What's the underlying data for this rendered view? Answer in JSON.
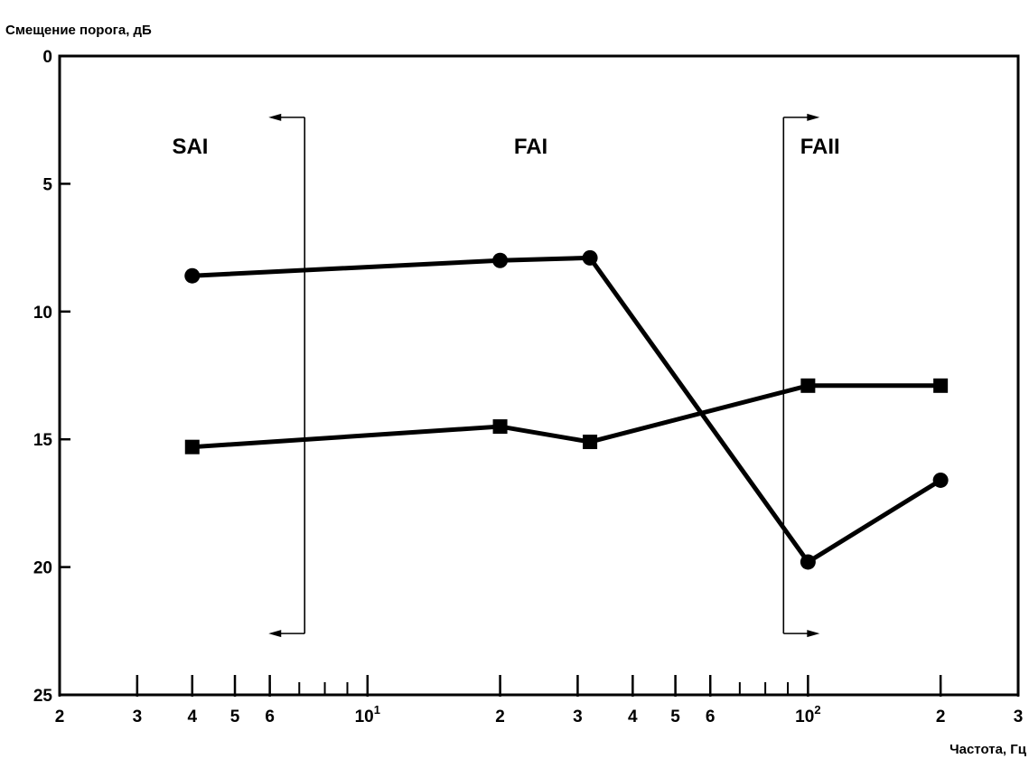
{
  "chart_data": {
    "type": "line",
    "title": "",
    "ylabel": "Смещение порога, дБ",
    "xlabel": "Частота, Гц",
    "x_scale": "log",
    "xlim": [
      2,
      300
    ],
    "ylim": [
      0,
      25
    ],
    "y_inverted": true,
    "grid": false,
    "legend": "none",
    "y_ticks": [
      0,
      5,
      10,
      15,
      20,
      25
    ],
    "x_major_ticks": [
      {
        "value": 2,
        "label": "2"
      },
      {
        "value": 3,
        "label": "3"
      },
      {
        "value": 4,
        "label": "4"
      },
      {
        "value": 5,
        "label": "5"
      },
      {
        "value": 6,
        "label": "6"
      },
      {
        "value": 10,
        "label": "10",
        "sup": "1"
      },
      {
        "value": 20,
        "label": "2"
      },
      {
        "value": 30,
        "label": "3"
      },
      {
        "value": 40,
        "label": "4"
      },
      {
        "value": 50,
        "label": "5"
      },
      {
        "value": 60,
        "label": "6"
      },
      {
        "value": 100,
        "label": "10",
        "sup": "2"
      },
      {
        "value": 200,
        "label": "2"
      },
      {
        "value": 300,
        "label": "3"
      }
    ],
    "series": [
      {
        "marker": "circle",
        "x": [
          4,
          20,
          32,
          100,
          200
        ],
        "y": [
          8.6,
          8.0,
          7.9,
          19.8,
          16.6
        ]
      },
      {
        "marker": "square",
        "x": [
          4,
          20,
          32,
          100,
          200
        ],
        "y": [
          15.3,
          14.5,
          15.1,
          12.9,
          12.9
        ]
      }
    ],
    "annotations": [
      {
        "text": "SAI",
        "x": 3.6,
        "y": 3.5,
        "bracket_x": 7.2,
        "arrow": "left"
      },
      {
        "text": "FAI",
        "x": 21.5,
        "y": 3.5
      },
      {
        "text": "FAII",
        "x": 96,
        "y": 3.5,
        "bracket_x": 88,
        "arrow": "right"
      }
    ],
    "colors": {
      "line": "#000000",
      "background": "#ffffff"
    }
  }
}
